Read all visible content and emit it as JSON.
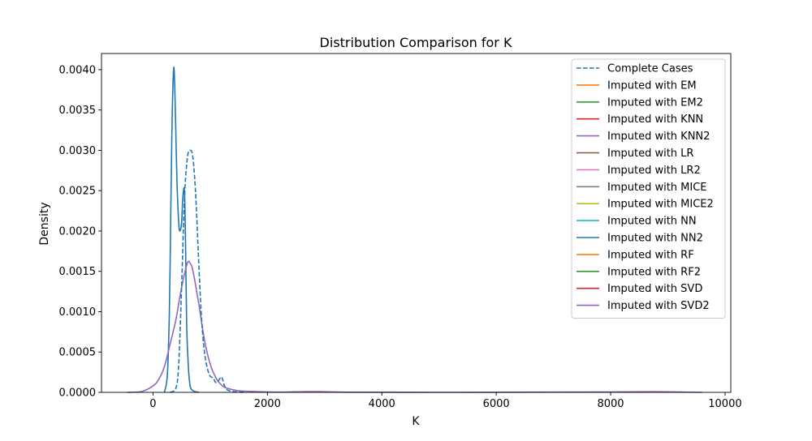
{
  "chart_data": {
    "type": "line",
    "title": "Distribution Comparison for K",
    "xlabel": "K",
    "ylabel": "Density",
    "xlim": [
      -900,
      10100
    ],
    "ylim": [
      0,
      0.0042
    ],
    "x_ticks": [
      0,
      2000,
      4000,
      6000,
      8000,
      10000
    ],
    "y_ticks": [
      0,
      0.0005,
      0.001,
      0.0015,
      0.002,
      0.0025,
      0.003,
      0.0035,
      0.004
    ],
    "x_tick_labels": [
      "0",
      "2000",
      "4000",
      "6000",
      "8000",
      "10000"
    ],
    "y_tick_labels": [
      "0.0000",
      "0.0005",
      "0.0010",
      "0.0015",
      "0.0020",
      "0.0025",
      "0.0030",
      "0.0035",
      "0.0040"
    ],
    "grid": false,
    "legend_position": "top-right",
    "series": [
      {
        "name": "Complete Cases",
        "color": "#1f77b4",
        "dash": true,
        "x": [
          300,
          400,
          450,
          500,
          550,
          600,
          650,
          700,
          750,
          800,
          850,
          900,
          950,
          1000,
          1050,
          1100,
          1150,
          1200,
          1250,
          1300,
          1400,
          1600
        ],
        "y": [
          0,
          5e-05,
          0.00035,
          0.0013,
          0.0024,
          0.0029,
          0.003,
          0.0029,
          0.0024,
          0.0016,
          0.0009,
          0.0005,
          0.0003,
          0.0002,
          0.00018,
          0.00012,
          0.00015,
          0.00019,
          8e-05,
          3e-05,
          1e-05,
          0
        ]
      },
      {
        "name": "Imputed with EM",
        "color": "#ff7f0e",
        "dash": false,
        "x": [],
        "y": []
      },
      {
        "name": "Imputed with EM2",
        "color": "#2ca02c",
        "dash": false,
        "x": [],
        "y": []
      },
      {
        "name": "Imputed with KNN",
        "color": "#d62728",
        "dash": false,
        "x": [],
        "y": []
      },
      {
        "name": "Imputed with KNN2",
        "color": "#9467bd",
        "dash": false,
        "x": [],
        "y": []
      },
      {
        "name": "Imputed with LR",
        "color": "#8c564b",
        "dash": false,
        "x": [],
        "y": []
      },
      {
        "name": "Imputed with LR2",
        "color": "#e377c2",
        "dash": false,
        "x": [],
        "y": []
      },
      {
        "name": "Imputed with MICE",
        "color": "#7f7f7f",
        "dash": false,
        "x": [],
        "y": []
      },
      {
        "name": "Imputed with MICE2",
        "color": "#bcbd22",
        "dash": false,
        "x": [],
        "y": []
      },
      {
        "name": "Imputed with NN",
        "color": "#17becf",
        "dash": false,
        "x": [],
        "y": []
      },
      {
        "name": "Imputed with NN2",
        "color": "#1f77b4",
        "dash": false,
        "x": [
          200,
          250,
          280,
          300,
          330,
          360,
          380,
          400,
          420,
          450,
          470,
          500,
          520,
          550,
          570,
          590,
          620,
          650,
          700,
          800
        ],
        "y": [
          0,
          0.0002,
          0.0008,
          0.0016,
          0.0032,
          0.004,
          0.0038,
          0.0032,
          0.0026,
          0.0021,
          0.002,
          0.0021,
          0.0024,
          0.0025,
          0.0018,
          0.0008,
          0.0003,
          8e-05,
          2e-05,
          0
        ]
      },
      {
        "name": "Imputed with RF",
        "color": "#ff7f0e",
        "dash": false,
        "x": [],
        "y": []
      },
      {
        "name": "Imputed with RF2",
        "color": "#2ca02c",
        "dash": false,
        "x": [],
        "y": []
      },
      {
        "name": "Imputed with SVD",
        "color": "#d62728",
        "dash": false,
        "x": [],
        "y": []
      },
      {
        "name": "Imputed with SVD2",
        "color": "#9467bd",
        "dash": false,
        "x": [
          -450,
          -200,
          0,
          100,
          200,
          300,
          400,
          500,
          600,
          650,
          700,
          800,
          900,
          1000,
          1100,
          1200,
          1300,
          1500,
          1800,
          2200,
          2700,
          3000,
          3500,
          5000,
          7000,
          8000,
          8800,
          9200,
          9600
        ],
        "y": [
          0,
          1e-05,
          8e-05,
          0.00016,
          0.00032,
          0.0006,
          0.0009,
          0.0013,
          0.0016,
          0.0016,
          0.0015,
          0.0011,
          0.00065,
          0.00035,
          0.00018,
          9e-05,
          5e-05,
          2e-05,
          1e-05,
          3e-06,
          1e-05,
          8e-06,
          2e-06,
          0,
          3e-06,
          5e-06,
          8e-06,
          4e-06,
          0
        ]
      }
    ]
  }
}
